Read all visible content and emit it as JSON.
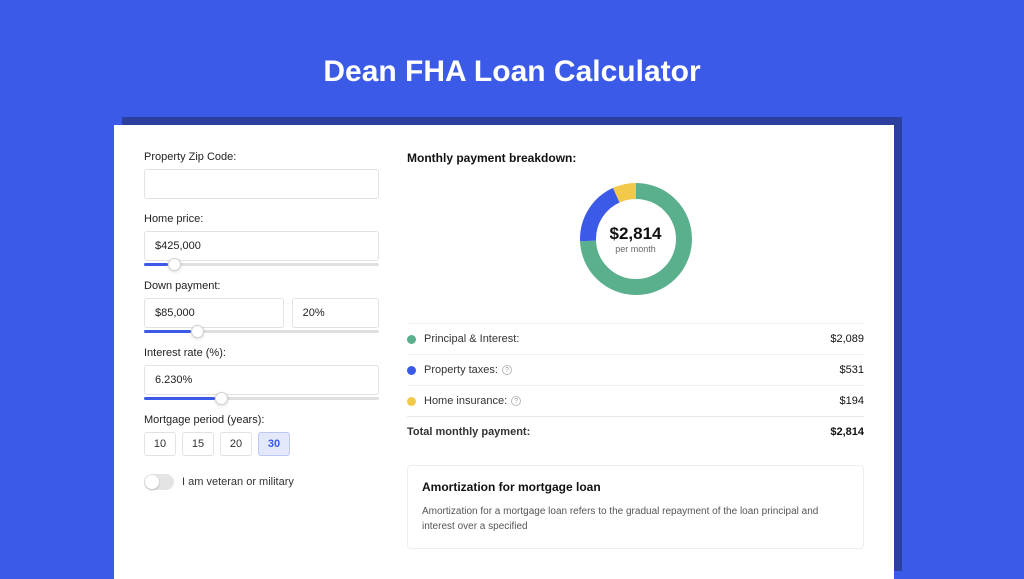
{
  "page": {
    "title": "Dean FHA Loan Calculator",
    "background_color": "#3c5ae8",
    "panel_shadow_color": "#2a3f9e",
    "panel_background": "#ffffff"
  },
  "form": {
    "zip": {
      "label": "Property Zip Code:",
      "value": ""
    },
    "home_price": {
      "label": "Home price:",
      "value": "$425,000",
      "slider_pct": 10
    },
    "down_payment": {
      "label": "Down payment:",
      "value": "$85,000",
      "pct_value": "20%",
      "slider_pct": 20
    },
    "interest": {
      "label": "Interest rate (%):",
      "value": "6.230%",
      "slider_pct": 30
    },
    "period": {
      "label": "Mortgage period (years):",
      "options": [
        "10",
        "15",
        "20",
        "30"
      ],
      "selected": "30"
    },
    "veteran": {
      "label": "I am veteran or military",
      "checked": false
    }
  },
  "breakdown": {
    "title": "Monthly payment breakdown:",
    "donut": {
      "amount": "$2,814",
      "sub": "per month",
      "thickness": 16,
      "slices": [
        {
          "key": "principal_interest",
          "value": 2089,
          "color": "#5aaf8c"
        },
        {
          "key": "property_taxes",
          "value": 531,
          "color": "#3c5ae8"
        },
        {
          "key": "home_insurance",
          "value": 194,
          "color": "#f3c94b"
        }
      ]
    },
    "rows": [
      {
        "label": "Principal & Interest:",
        "value": "$2,089",
        "color": "#5aaf8c",
        "help": false
      },
      {
        "label": "Property taxes:",
        "value": "$531",
        "color": "#3c5ae8",
        "help": true
      },
      {
        "label": "Home insurance:",
        "value": "$194",
        "color": "#f3c94b",
        "help": true
      }
    ],
    "total": {
      "label": "Total monthly payment:",
      "value": "$2,814"
    }
  },
  "amortization": {
    "title": "Amortization for mortgage loan",
    "text": "Amortization for a mortgage loan refers to the gradual repayment of the loan principal and interest over a specified"
  }
}
